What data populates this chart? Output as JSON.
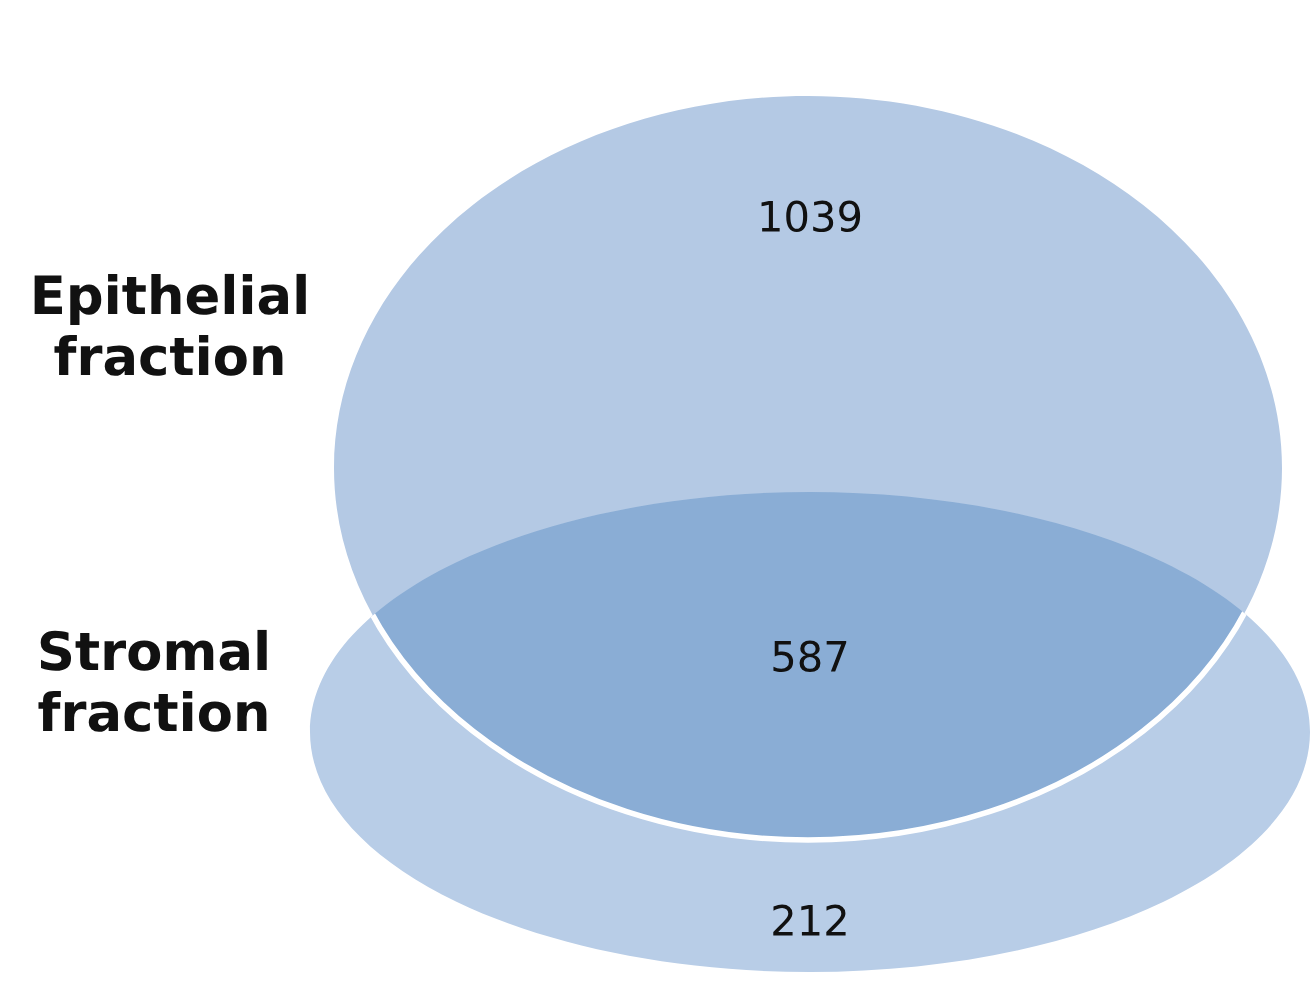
{
  "chart_data": {
    "type": "other",
    "categories": [
      null,
      null,
      null
    ],
    "values": [
      1039,
      587,
      212
    ],
    "colors": [
      "#b4c9e4",
      "#8aadd5",
      "#b8cde7"
    ],
    "data_labels": true,
    "annotations": [
      "Epithelial\nfraction",
      "Stromal\nfraction"
    ]
  }
}
